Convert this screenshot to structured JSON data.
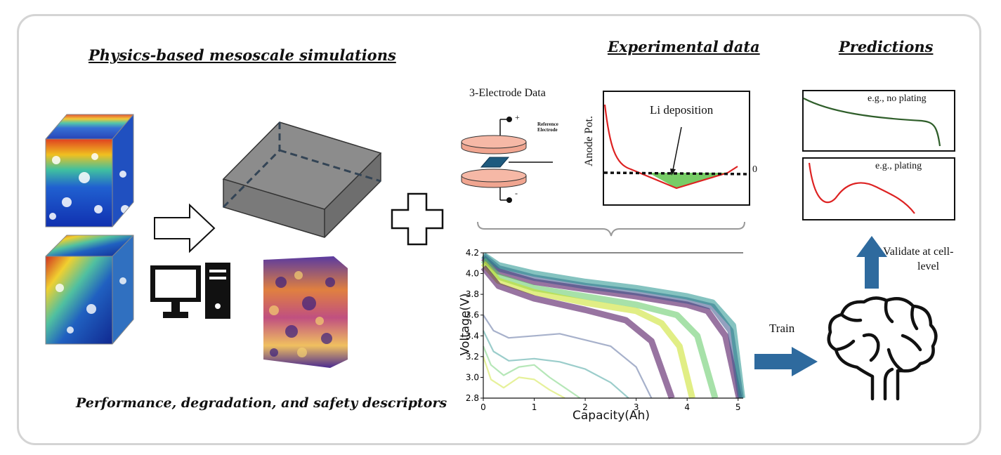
{
  "headings": {
    "simulations": "Physics-based mesoscale simulations",
    "experimental": "Experimental data",
    "predictions": "Predictions"
  },
  "captions": {
    "descriptors": "Performance, degradation, and safety descriptors"
  },
  "electrode": {
    "title": "3-Electrode Data",
    "plus": "+",
    "minus": "-",
    "reference_line1": "Reference",
    "reference_line2": "Electrode"
  },
  "anode_plot": {
    "ylabel": "Anode Pot.",
    "annotation": "Li deposition",
    "zero_label": "0"
  },
  "predictions": {
    "no_plating": "e.g., no plating",
    "plating": "e.g., plating",
    "validate_line1": "Validate at cell-",
    "validate_line2": "level"
  },
  "train_label": "Train",
  "colors": {
    "frame": "#d4d4d4",
    "arrow_blue": "#2e6a9e",
    "plate_fill": "#f0a590",
    "anode_curve": "#dd2222",
    "deposition_fill": "#77cc66",
    "no_plating_curve": "#2f5e2a",
    "plating_curve": "#dd2222"
  },
  "chart_data": {
    "type": "line",
    "xlabel": "Capacity(Ah)",
    "ylabel": "Voltage(V)",
    "xlim": [
      0,
      5.1
    ],
    "ylim": [
      2.8,
      4.2
    ],
    "xticks": [
      0,
      1,
      2,
      3,
      4,
      5
    ],
    "yticks": [
      2.8,
      3.0,
      3.2,
      3.4,
      3.6,
      3.8,
      4.0,
      4.2
    ],
    "grid": false,
    "colormap": [
      "#440154",
      "#3b528b",
      "#21918c",
      "#5ec962",
      "#c8e020"
    ],
    "series": [
      {
        "x": [
          0,
          0.3,
          1,
          2,
          3,
          4,
          4.4,
          4.75,
          5.02
        ],
        "y": [
          4.15,
          4.02,
          3.92,
          3.85,
          3.78,
          3.7,
          3.64,
          3.4,
          2.8
        ]
      },
      {
        "x": [
          0,
          0.3,
          1,
          2,
          3,
          4,
          4.5,
          4.85,
          5.05
        ],
        "y": [
          4.17,
          4.05,
          3.96,
          3.88,
          3.82,
          3.74,
          3.68,
          3.45,
          2.8
        ]
      },
      {
        "x": [
          0,
          0.3,
          1,
          2,
          3,
          4,
          4.5,
          4.9,
          5.08
        ],
        "y": [
          4.18,
          4.08,
          4.0,
          3.92,
          3.86,
          3.78,
          3.72,
          3.5,
          2.8
        ]
      },
      {
        "x": [
          0,
          0.3,
          1,
          2,
          3,
          3.8,
          4.2,
          4.55
        ],
        "y": [
          4.13,
          3.97,
          3.86,
          3.78,
          3.7,
          3.6,
          3.4,
          2.8
        ]
      },
      {
        "x": [
          0,
          0.3,
          1,
          2,
          3,
          3.5,
          3.85,
          4.1
        ],
        "y": [
          4.1,
          3.93,
          3.82,
          3.72,
          3.64,
          3.52,
          3.3,
          2.8
        ]
      },
      {
        "x": [
          0,
          0.3,
          1,
          2,
          2.8,
          3.3,
          3.7
        ],
        "y": [
          4.06,
          3.88,
          3.76,
          3.65,
          3.55,
          3.35,
          2.8
        ]
      },
      {
        "x": [
          0,
          0.2,
          0.5,
          1,
          1.5,
          2,
          2.5,
          3,
          3.3
        ],
        "y": [
          3.6,
          3.45,
          3.38,
          3.4,
          3.42,
          3.36,
          3.3,
          3.1,
          2.8
        ]
      },
      {
        "x": [
          0,
          0.2,
          0.5,
          1,
          1.5,
          2,
          2.5,
          2.85
        ],
        "y": [
          3.45,
          3.25,
          3.16,
          3.18,
          3.15,
          3.08,
          2.95,
          2.8
        ]
      },
      {
        "x": [
          0,
          0.15,
          0.4,
          0.7,
          1,
          1.3,
          1.6,
          1.9
        ],
        "y": [
          3.3,
          3.12,
          3.02,
          3.1,
          3.12,
          3.0,
          2.9,
          2.8
        ]
      },
      {
        "x": [
          0,
          0.15,
          0.4,
          0.7,
          1,
          1.3,
          1.6
        ],
        "y": [
          3.2,
          2.98,
          2.9,
          3.0,
          2.98,
          2.88,
          2.8
        ]
      }
    ]
  }
}
